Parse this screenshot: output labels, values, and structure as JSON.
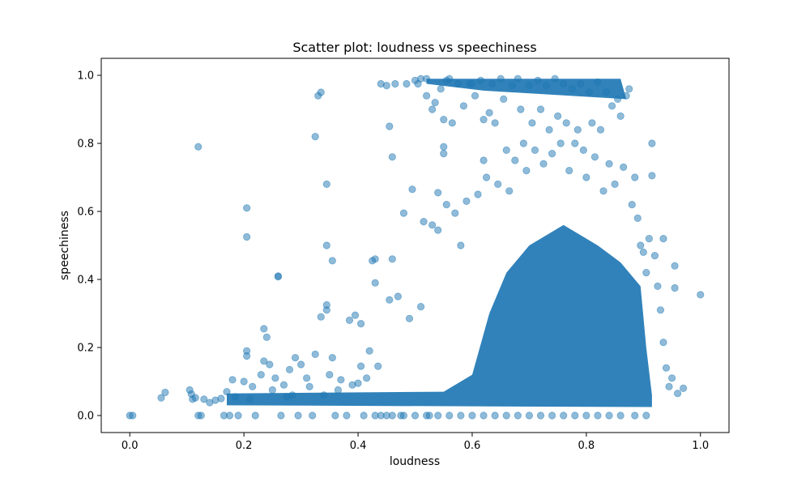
{
  "chart_data": {
    "type": "scatter",
    "title": "Scatter plot: loudness vs speechiness",
    "xlabel": "loudness",
    "ylabel": "speechiness",
    "xlim": [
      -0.05,
      1.05
    ],
    "ylim": [
      -0.05,
      1.05
    ],
    "xticks": [
      0.0,
      0.2,
      0.4,
      0.6,
      0.8,
      1.0
    ],
    "yticks": [
      0.0,
      0.2,
      0.4,
      0.6,
      0.8,
      1.0
    ],
    "xtick_labels": [
      "0.0",
      "0.2",
      "0.4",
      "0.6",
      "0.8",
      "1.0"
    ],
    "ytick_labels": [
      "0.0",
      "0.2",
      "0.4",
      "0.6",
      "0.8",
      "1.0"
    ],
    "grid": false,
    "marker_color": "#1f77b4",
    "marker_alpha": 0.5,
    "series": [
      {
        "points": [
          [
            0.0,
            0.0
          ],
          [
            0.005,
            0.0
          ],
          [
            0.055,
            0.052
          ],
          [
            0.062,
            0.068
          ],
          [
            0.105,
            0.075
          ],
          [
            0.108,
            0.063
          ],
          [
            0.11,
            0.048
          ],
          [
            0.115,
            0.052
          ],
          [
            0.12,
            0.79
          ],
          [
            0.12,
            0.0
          ],
          [
            0.125,
            0.0
          ],
          [
            0.13,
            0.048
          ],
          [
            0.14,
            0.038
          ],
          [
            0.15,
            0.045
          ],
          [
            0.16,
            0.05
          ],
          [
            0.165,
            0.0
          ],
          [
            0.17,
            0.07
          ],
          [
            0.175,
            0.0
          ],
          [
            0.18,
            0.105
          ],
          [
            0.185,
            0.055
          ],
          [
            0.19,
            0.0
          ],
          [
            0.2,
            0.1
          ],
          [
            0.205,
            0.61
          ],
          [
            0.205,
            0.525
          ],
          [
            0.205,
            0.19
          ],
          [
            0.205,
            0.175
          ],
          [
            0.21,
            0.048
          ],
          [
            0.215,
            0.085
          ],
          [
            0.22,
            0.0
          ],
          [
            0.23,
            0.12
          ],
          [
            0.235,
            0.255
          ],
          [
            0.235,
            0.16
          ],
          [
            0.24,
            0.23
          ],
          [
            0.245,
            0.15
          ],
          [
            0.25,
            0.075
          ],
          [
            0.255,
            0.11
          ],
          [
            0.26,
            0.41
          ],
          [
            0.26,
            0.408
          ],
          [
            0.265,
            0.0
          ],
          [
            0.27,
            0.09
          ],
          [
            0.275,
            0.055
          ],
          [
            0.28,
            0.135
          ],
          [
            0.285,
            0.06
          ],
          [
            0.29,
            0.17
          ],
          [
            0.295,
            0.0
          ],
          [
            0.3,
            0.15
          ],
          [
            0.31,
            0.11
          ],
          [
            0.315,
            0.085
          ],
          [
            0.32,
            0.0
          ],
          [
            0.325,
            0.82
          ],
          [
            0.325,
            0.18
          ],
          [
            0.33,
            0.94
          ],
          [
            0.335,
            0.95
          ],
          [
            0.335,
            0.29
          ],
          [
            0.34,
            0.06
          ],
          [
            0.345,
            0.68
          ],
          [
            0.345,
            0.5
          ],
          [
            0.345,
            0.325
          ],
          [
            0.345,
            0.31
          ],
          [
            0.35,
            0.12
          ],
          [
            0.355,
            0.455
          ],
          [
            0.355,
            0.17
          ],
          [
            0.36,
            0.0
          ],
          [
            0.365,
            0.075
          ],
          [
            0.37,
            0.105
          ],
          [
            0.38,
            0.0
          ],
          [
            0.385,
            0.28
          ],
          [
            0.39,
            0.09
          ],
          [
            0.395,
            0.295
          ],
          [
            0.4,
            0.095
          ],
          [
            0.405,
            0.145
          ],
          [
            0.405,
            0.27
          ],
          [
            0.41,
            0.0
          ],
          [
            0.415,
            0.11
          ],
          [
            0.42,
            0.19
          ],
          [
            0.425,
            0.455
          ],
          [
            0.43,
            0.46
          ],
          [
            0.43,
            0.39
          ],
          [
            0.435,
            0.145
          ],
          [
            0.44,
            0.0
          ],
          [
            0.44,
            0.975
          ],
          [
            0.45,
            0.97
          ],
          [
            0.455,
            0.85
          ],
          [
            0.455,
            0.34
          ],
          [
            0.46,
            0.46
          ],
          [
            0.46,
            0.76
          ],
          [
            0.465,
            0.975
          ],
          [
            0.47,
            0.35
          ],
          [
            0.475,
            0.0
          ],
          [
            0.48,
            0.595
          ],
          [
            0.485,
            0.975
          ],
          [
            0.49,
            0.285
          ],
          [
            0.495,
            0.665
          ],
          [
            0.5,
            0.985
          ],
          [
            0.505,
            0.975
          ],
          [
            0.51,
            0.32
          ],
          [
            0.51,
            0.99
          ],
          [
            0.515,
            0.57
          ],
          [
            0.52,
            0.94
          ],
          [
            0.52,
            0.99
          ],
          [
            0.525,
            0.0
          ],
          [
            0.53,
            0.56
          ],
          [
            0.53,
            0.9
          ],
          [
            0.535,
            0.92
          ],
          [
            0.54,
            0.655
          ],
          [
            0.54,
            0.545
          ],
          [
            0.545,
            0.96
          ],
          [
            0.55,
            0.87
          ],
          [
            0.55,
            0.77
          ],
          [
            0.55,
            0.79
          ],
          [
            0.555,
            0.985
          ],
          [
            0.555,
            0.62
          ],
          [
            0.56,
            0.99
          ],
          [
            0.565,
            0.86
          ],
          [
            0.57,
            0.595
          ],
          [
            0.575,
            0.975
          ],
          [
            0.58,
            0.5
          ],
          [
            0.585,
            0.91
          ],
          [
            0.59,
            0.63
          ],
          [
            0.595,
            0.975
          ],
          [
            0.6,
            0.975
          ],
          [
            0.605,
            0.94
          ],
          [
            0.61,
            0.65
          ],
          [
            0.615,
            0.985
          ],
          [
            0.62,
            0.87
          ],
          [
            0.62,
            0.75
          ],
          [
            0.625,
            0.7
          ],
          [
            0.63,
            0.89
          ],
          [
            0.635,
            0.975
          ],
          [
            0.64,
            0.86
          ],
          [
            0.645,
            0.68
          ],
          [
            0.65,
            0.99
          ],
          [
            0.655,
            0.93
          ],
          [
            0.66,
            0.78
          ],
          [
            0.665,
            0.66
          ],
          [
            0.67,
            0.97
          ],
          [
            0.675,
            0.75
          ],
          [
            0.68,
            0.99
          ],
          [
            0.685,
            0.9
          ],
          [
            0.69,
            0.8
          ],
          [
            0.695,
            0.72
          ],
          [
            0.7,
            0.97
          ],
          [
            0.705,
            0.86
          ],
          [
            0.71,
            0.78
          ],
          [
            0.715,
            0.985
          ],
          [
            0.72,
            0.9
          ],
          [
            0.725,
            0.74
          ],
          [
            0.73,
            0.97
          ],
          [
            0.735,
            0.84
          ],
          [
            0.74,
            0.77
          ],
          [
            0.745,
            0.99
          ],
          [
            0.75,
            0.88
          ],
          [
            0.755,
            0.8
          ],
          [
            0.76,
            0.975
          ],
          [
            0.765,
            0.86
          ],
          [
            0.77,
            0.72
          ],
          [
            0.775,
            0.96
          ],
          [
            0.78,
            0.8
          ],
          [
            0.785,
            0.84
          ],
          [
            0.79,
            0.975
          ],
          [
            0.795,
            0.78
          ],
          [
            0.8,
            0.7
          ],
          [
            0.805,
            0.95
          ],
          [
            0.81,
            0.86
          ],
          [
            0.815,
            0.76
          ],
          [
            0.82,
            0.98
          ],
          [
            0.825,
            0.84
          ],
          [
            0.83,
            0.66
          ],
          [
            0.835,
            0.95
          ],
          [
            0.84,
            0.74
          ],
          [
            0.845,
            0.91
          ],
          [
            0.85,
            0.68
          ],
          [
            0.855,
            0.93
          ],
          [
            0.86,
            0.88
          ],
          [
            0.865,
            0.73
          ],
          [
            0.87,
            0.94
          ],
          [
            0.875,
            0.96
          ],
          [
            0.88,
            0.62
          ],
          [
            0.885,
            0.7
          ],
          [
            0.89,
            0.58
          ],
          [
            0.895,
            0.5
          ],
          [
            0.9,
            0.48
          ],
          [
            0.905,
            0.42
          ],
          [
            0.91,
            0.52
          ],
          [
            0.915,
            0.8
          ],
          [
            0.915,
            0.705
          ],
          [
            0.92,
            0.47
          ],
          [
            0.925,
            0.38
          ],
          [
            0.93,
            0.31
          ],
          [
            0.935,
            0.52
          ],
          [
            0.935,
            0.215
          ],
          [
            0.94,
            0.14
          ],
          [
            0.945,
            0.085
          ],
          [
            0.95,
            0.11
          ],
          [
            0.955,
            0.44
          ],
          [
            0.955,
            0.375
          ],
          [
            0.96,
            0.065
          ],
          [
            0.97,
            0.08
          ],
          [
            1.0,
            0.355
          ],
          [
            0.905,
            0.0
          ],
          [
            0.885,
            0.0
          ],
          [
            0.86,
            0.0
          ],
          [
            0.84,
            0.0
          ],
          [
            0.82,
            0.0
          ],
          [
            0.8,
            0.0
          ],
          [
            0.78,
            0.0
          ],
          [
            0.76,
            0.0
          ],
          [
            0.74,
            0.0
          ],
          [
            0.72,
            0.0
          ],
          [
            0.7,
            0.0
          ],
          [
            0.68,
            0.0
          ],
          [
            0.66,
            0.0
          ],
          [
            0.64,
            0.0
          ],
          [
            0.62,
            0.0
          ],
          [
            0.6,
            0.0
          ],
          [
            0.58,
            0.0
          ],
          [
            0.56,
            0.0
          ],
          [
            0.54,
            0.0
          ],
          [
            0.52,
            0.0
          ],
          [
            0.5,
            0.0
          ],
          [
            0.48,
            0.0
          ],
          [
            0.46,
            0.0
          ],
          [
            0.45,
            0.0
          ],
          [
            0.43,
            0.0
          ]
        ]
      }
    ]
  }
}
